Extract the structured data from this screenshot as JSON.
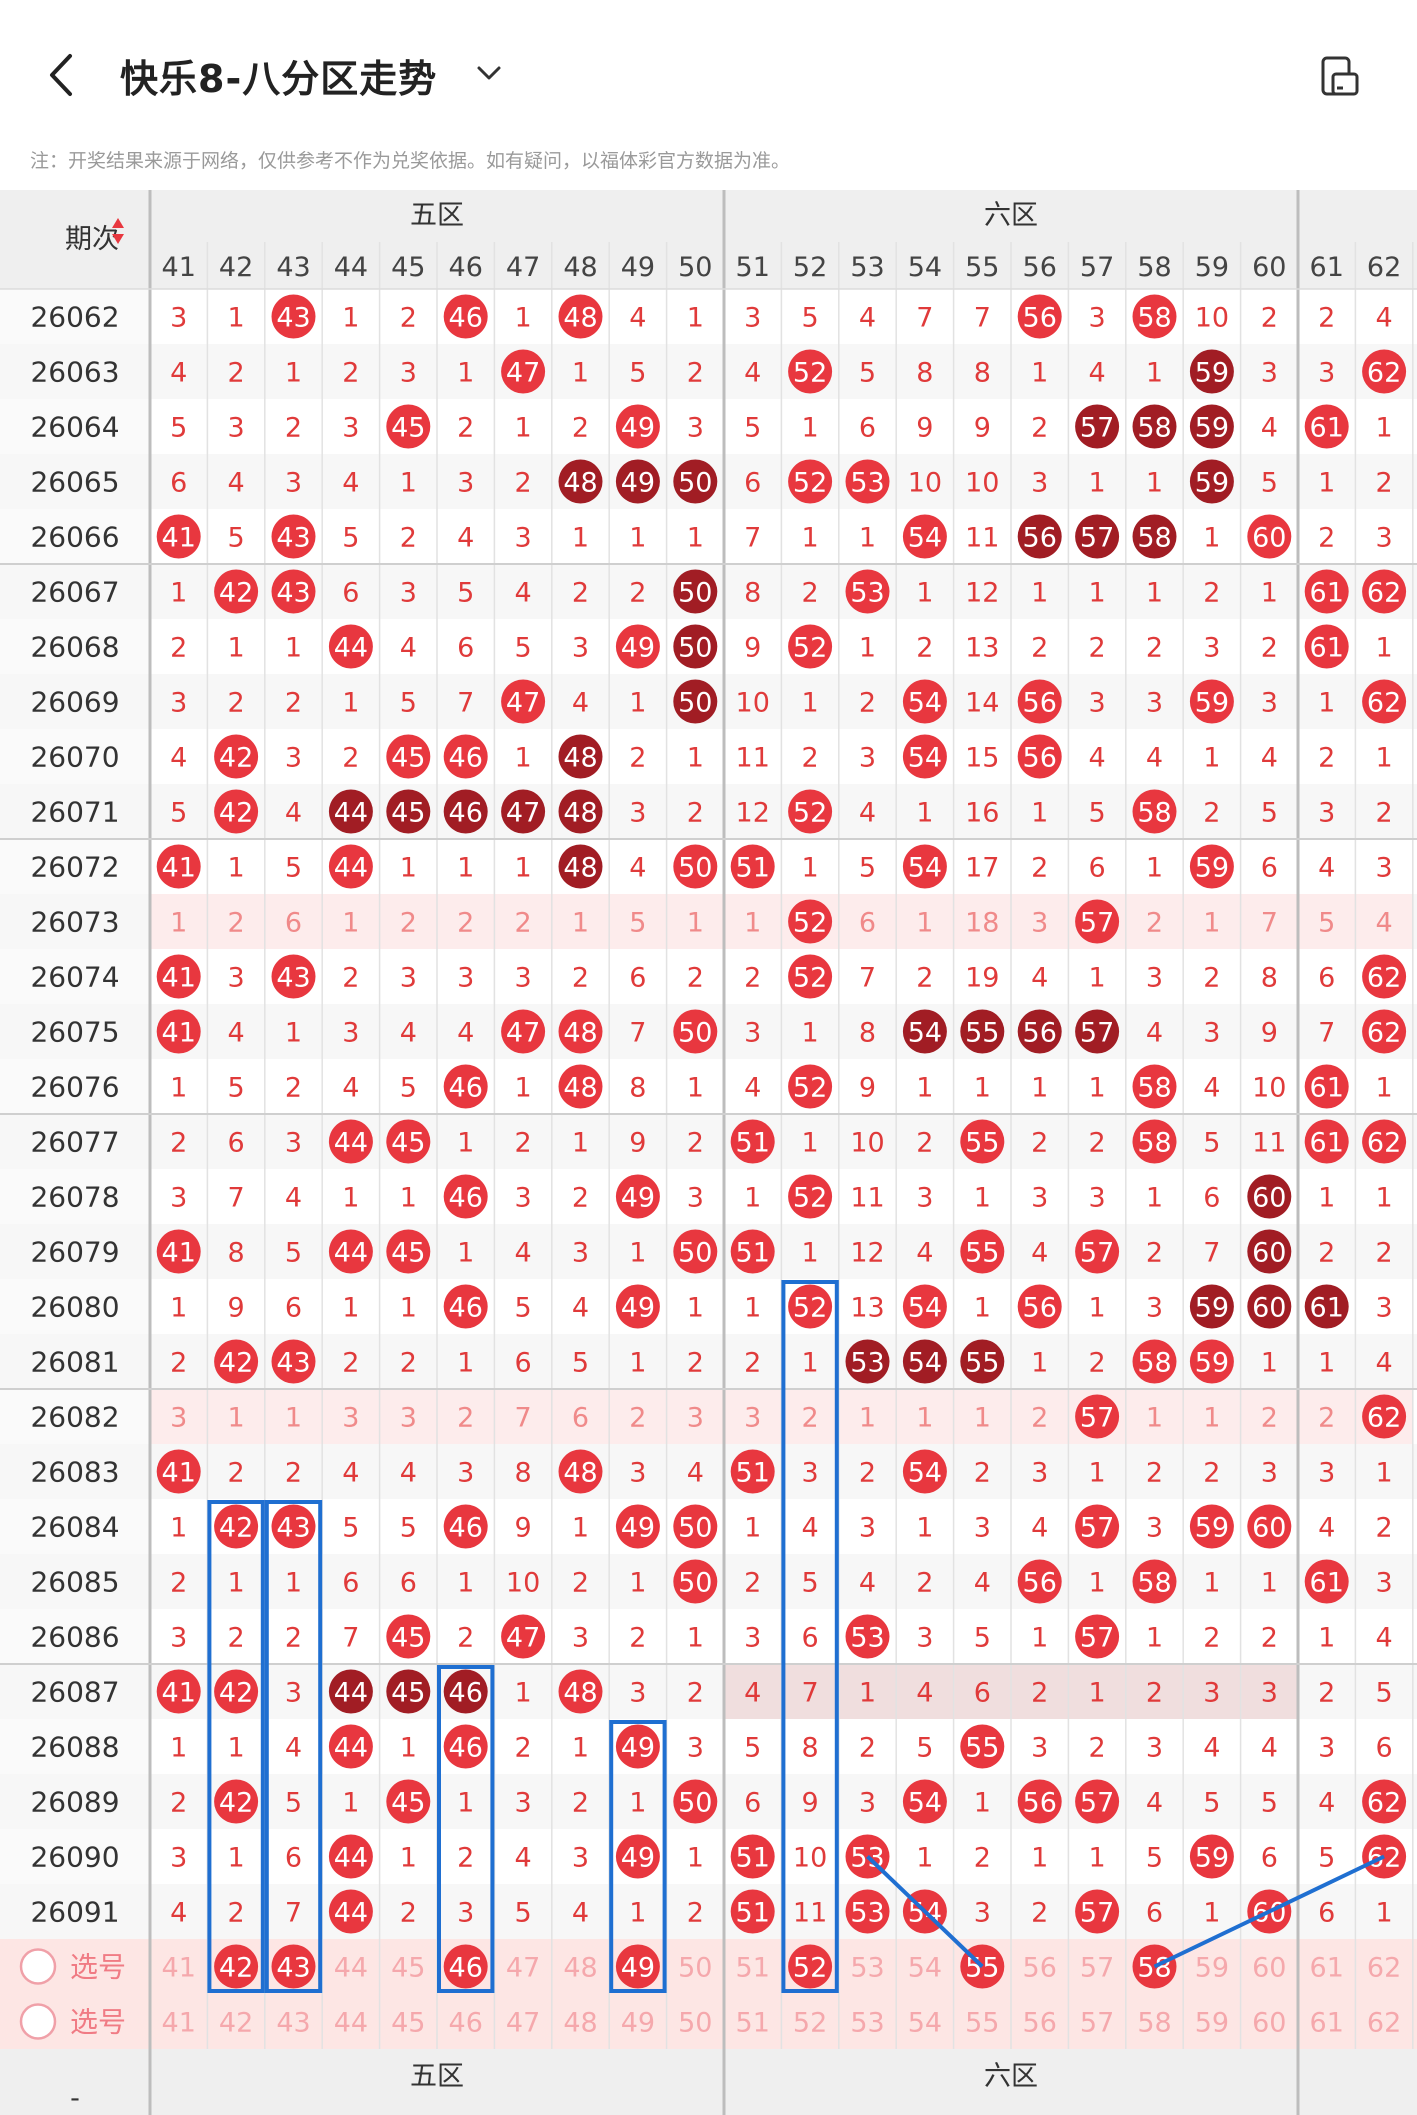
{
  "header": {
    "title": "快乐8-八分区走势",
    "back_icon": "back-chevron-icon",
    "dropdown_icon": "chevron-down-icon",
    "device_icon": "phone-rotate-icon"
  },
  "notice": "注：开奖结果来源于网络，仅供参考不作为兑奖依据。如有疑问，以福体彩官方数据为准。",
  "table": {
    "period_header": "期次",
    "zones": [
      {
        "label": "五区",
        "start": 41,
        "end": 50
      },
      {
        "label": "六区",
        "start": 51,
        "end": 60
      },
      {
        "label": "",
        "start": 61,
        "end": 62
      }
    ],
    "columns": [
      41,
      42,
      43,
      44,
      45,
      46,
      47,
      48,
      49,
      50,
      51,
      52,
      53,
      54,
      55,
      56,
      57,
      58,
      59,
      60,
      61,
      62
    ],
    "rows": [
      {
        "period": "26062",
        "cells": [
          3,
          1,
          "43",
          1,
          2,
          "46",
          1,
          "48",
          4,
          1,
          3,
          5,
          4,
          7,
          7,
          "56",
          3,
          "58",
          10,
          2,
          2,
          4
        ]
      },
      {
        "period": "26063",
        "cells": [
          4,
          2,
          1,
          2,
          3,
          1,
          "47",
          1,
          5,
          2,
          4,
          "52",
          5,
          8,
          8,
          1,
          4,
          1,
          "d59",
          3,
          3,
          "62"
        ]
      },
      {
        "period": "26064",
        "cells": [
          5,
          3,
          2,
          3,
          "45",
          2,
          1,
          2,
          "49",
          3,
          5,
          1,
          6,
          9,
          9,
          2,
          "d57",
          "d58",
          "d59",
          4,
          "61",
          1
        ]
      },
      {
        "period": "26065",
        "cells": [
          6,
          4,
          3,
          4,
          1,
          3,
          2,
          "d48",
          "d49",
          "d50",
          6,
          "52",
          "53",
          10,
          10,
          3,
          1,
          1,
          "d59",
          5,
          1,
          2
        ]
      },
      {
        "period": "26066",
        "cells": [
          "41",
          5,
          "43",
          5,
          2,
          4,
          3,
          1,
          1,
          1,
          7,
          1,
          1,
          "54",
          11,
          "d56",
          "d57",
          "d58",
          1,
          "60",
          2,
          3
        ]
      },
      {
        "period": "26067",
        "cells": [
          1,
          "42",
          "43",
          6,
          3,
          5,
          4,
          2,
          2,
          "d50",
          8,
          2,
          "53",
          1,
          12,
          1,
          1,
          1,
          2,
          1,
          "61",
          "62"
        ]
      },
      {
        "period": "26068",
        "cells": [
          2,
          1,
          1,
          "44",
          4,
          6,
          5,
          3,
          "49",
          "d50",
          9,
          "52",
          1,
          2,
          13,
          2,
          2,
          2,
          3,
          2,
          "61",
          1
        ]
      },
      {
        "period": "26069",
        "cells": [
          3,
          2,
          2,
          1,
          5,
          7,
          "47",
          4,
          1,
          "d50",
          10,
          1,
          2,
          "54",
          14,
          "56",
          3,
          3,
          "59",
          3,
          1,
          "62"
        ]
      },
      {
        "period": "26070",
        "cells": [
          4,
          "42",
          3,
          2,
          "45",
          "46",
          1,
          "d48",
          2,
          1,
          11,
          2,
          3,
          "54",
          15,
          "56",
          4,
          4,
          1,
          4,
          2,
          1
        ]
      },
      {
        "period": "26071",
        "cells": [
          5,
          "42",
          4,
          "d44",
          "d45",
          "d46",
          "d47",
          "d48",
          3,
          2,
          12,
          "52",
          4,
          1,
          16,
          1,
          5,
          "58",
          2,
          5,
          3,
          2
        ]
      },
      {
        "period": "26072",
        "cells": [
          "41",
          1,
          5,
          "44",
          1,
          1,
          1,
          "d48",
          4,
          "50",
          "51",
          1,
          5,
          "54",
          17,
          2,
          6,
          1,
          "59",
          6,
          4,
          3
        ]
      },
      {
        "period": "26073",
        "cells": [
          1,
          2,
          6,
          1,
          2,
          2,
          2,
          1,
          5,
          1,
          1,
          "52",
          6,
          1,
          18,
          3,
          "57",
          2,
          1,
          7,
          5,
          4
        ]
      },
      {
        "period": "26074",
        "cells": [
          "41",
          3,
          "43",
          2,
          3,
          3,
          3,
          2,
          6,
          2,
          2,
          "52",
          7,
          2,
          19,
          4,
          1,
          3,
          2,
          8,
          6,
          "62"
        ]
      },
      {
        "period": "26075",
        "cells": [
          "41",
          4,
          1,
          3,
          4,
          4,
          "47",
          "48",
          7,
          "50",
          3,
          1,
          8,
          "d54",
          "d55",
          "d56",
          "d57",
          4,
          3,
          9,
          7,
          "62"
        ]
      },
      {
        "period": "26076",
        "cells": [
          1,
          5,
          2,
          4,
          5,
          "46",
          1,
          "48",
          8,
          1,
          4,
          "52",
          9,
          1,
          1,
          1,
          1,
          "58",
          4,
          10,
          "61",
          1
        ]
      },
      {
        "period": "26077",
        "cells": [
          2,
          6,
          3,
          "44",
          "45",
          1,
          2,
          1,
          9,
          2,
          "51",
          1,
          10,
          2,
          "55",
          2,
          2,
          "58",
          5,
          11,
          "61",
          "62"
        ]
      },
      {
        "period": "26078",
        "cells": [
          3,
          7,
          4,
          1,
          1,
          "46",
          3,
          2,
          "49",
          3,
          1,
          "52",
          11,
          3,
          1,
          3,
          3,
          1,
          6,
          "d60",
          1,
          1
        ]
      },
      {
        "period": "26079",
        "cells": [
          "41",
          8,
          5,
          "44",
          "45",
          1,
          4,
          3,
          1,
          "50",
          "51",
          1,
          12,
          4,
          "55",
          4,
          "57",
          2,
          7,
          "d60",
          2,
          2
        ]
      },
      {
        "period": "26080",
        "cells": [
          1,
          9,
          6,
          1,
          1,
          "46",
          5,
          4,
          "49",
          1,
          1,
          "52",
          13,
          "54",
          1,
          "56",
          1,
          3,
          "d59",
          "d60",
          "d61",
          3
        ]
      },
      {
        "period": "26081",
        "cells": [
          2,
          "42",
          "43",
          2,
          2,
          1,
          6,
          5,
          1,
          2,
          2,
          1,
          "d53",
          "d54",
          "d55",
          1,
          2,
          "58",
          "59",
          1,
          1,
          4
        ]
      },
      {
        "period": "26082",
        "cells": [
          3,
          1,
          1,
          3,
          3,
          2,
          7,
          6,
          2,
          3,
          3,
          2,
          1,
          1,
          1,
          2,
          "57",
          1,
          1,
          2,
          2,
          "62"
        ]
      },
      {
        "period": "26083",
        "cells": [
          "41",
          2,
          2,
          4,
          4,
          3,
          8,
          "48",
          3,
          4,
          "51",
          3,
          2,
          "54",
          2,
          3,
          1,
          2,
          2,
          3,
          3,
          1
        ]
      },
      {
        "period": "26084",
        "cells": [
          1,
          "42",
          "43",
          5,
          5,
          "46",
          9,
          1,
          "49",
          "50",
          1,
          4,
          3,
          1,
          3,
          4,
          "57",
          3,
          "59",
          "60",
          4,
          2
        ]
      },
      {
        "period": "26085",
        "cells": [
          2,
          1,
          1,
          6,
          6,
          1,
          10,
          2,
          1,
          "50",
          2,
          5,
          4,
          2,
          4,
          "56",
          1,
          "58",
          1,
          1,
          "61",
          3
        ]
      },
      {
        "period": "26086",
        "cells": [
          3,
          2,
          2,
          7,
          "45",
          2,
          "47",
          3,
          2,
          1,
          3,
          6,
          "53",
          3,
          5,
          1,
          "57",
          1,
          2,
          2,
          1,
          4
        ]
      },
      {
        "period": "26087",
        "cells": [
          "41",
          "42",
          3,
          "d44",
          "d45",
          "d46",
          1,
          "48",
          3,
          2,
          4,
          7,
          1,
          4,
          6,
          2,
          1,
          2,
          3,
          3,
          2,
          5
        ]
      },
      {
        "period": "26088",
        "cells": [
          1,
          1,
          4,
          "44",
          1,
          "46",
          2,
          1,
          "49",
          3,
          5,
          8,
          2,
          5,
          "55",
          3,
          2,
          3,
          4,
          4,
          3,
          6
        ]
      },
      {
        "period": "26089",
        "cells": [
          2,
          "42",
          5,
          1,
          "45",
          1,
          3,
          2,
          1,
          "50",
          6,
          9,
          3,
          "54",
          1,
          "56",
          "57",
          4,
          5,
          5,
          4,
          "62"
        ]
      },
      {
        "period": "26090",
        "cells": [
          3,
          1,
          6,
          "44",
          1,
          2,
          4,
          3,
          "49",
          1,
          "51",
          10,
          "53",
          1,
          2,
          1,
          1,
          5,
          "59",
          6,
          5,
          "62"
        ]
      },
      {
        "period": "26091",
        "cells": [
          4,
          2,
          7,
          "44",
          2,
          3,
          5,
          4,
          1,
          2,
          "51",
          11,
          "53",
          "54",
          3,
          2,
          "57",
          6,
          1,
          "60",
          6,
          1
        ]
      }
    ],
    "pick_rows": [
      {
        "label": "选号",
        "selected": [
          42,
          43,
          46,
          49,
          52,
          55,
          58
        ]
      },
      {
        "label": "选号",
        "selected": []
      }
    ],
    "footer_zones": [
      "五区",
      "六区"
    ],
    "footer_left": "-"
  },
  "colors": {
    "ball_red": "#e8373f",
    "ball_dark": "#a11d24",
    "miss_text": "#e03a3a",
    "highlight_box": "#1f6fd1",
    "header_bg": "#efefef",
    "pick_bg": "#fde6e4"
  },
  "highlight_columns": [
    {
      "col": 42,
      "from": "26084",
      "to": "pick"
    },
    {
      "col": 43,
      "from": "26084",
      "to": "pick"
    },
    {
      "col": 46,
      "from": "26087",
      "to": "pick"
    },
    {
      "col": 49,
      "from": "26088",
      "to": "pick"
    },
    {
      "col": 52,
      "from": "26080",
      "to": "pick"
    }
  ],
  "trend_lines": [
    [
      [
        "26090",
        53
      ],
      [
        "pick",
        55
      ]
    ],
    [
      [
        "pick",
        58
      ],
      [
        "26090",
        62
      ]
    ]
  ]
}
